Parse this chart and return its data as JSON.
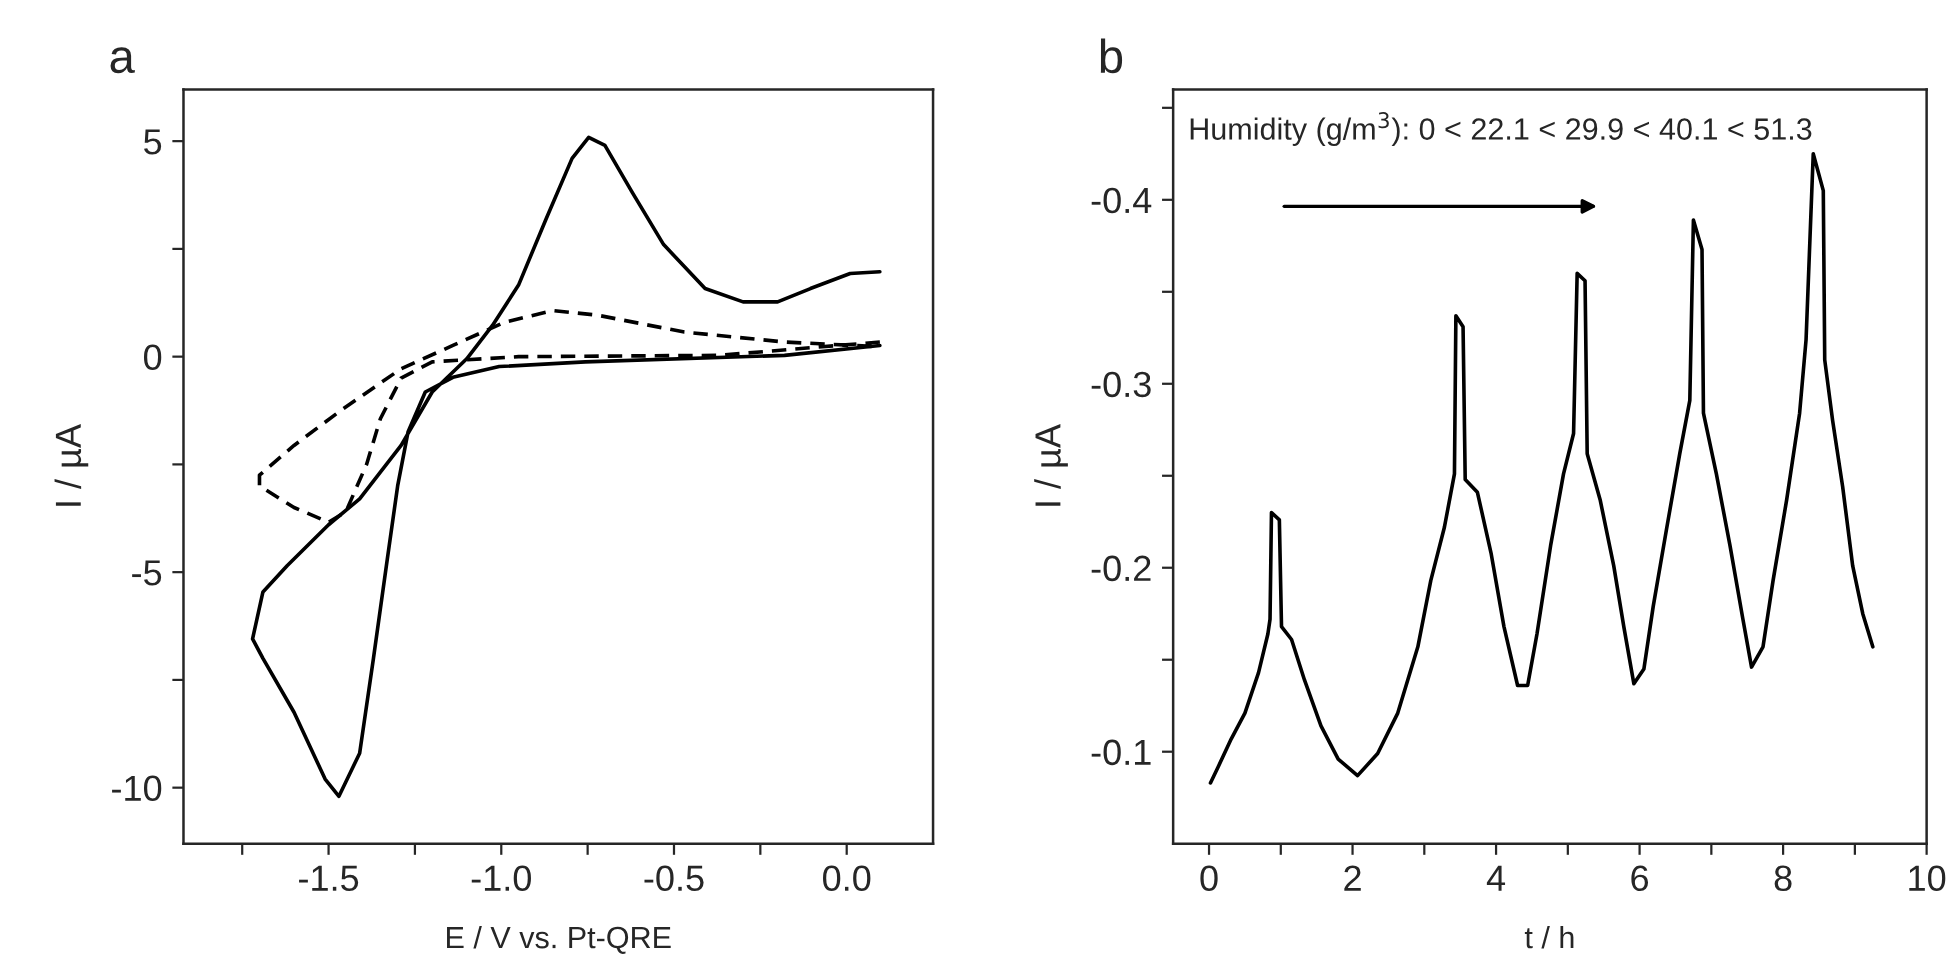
{
  "chart_data": [
    {
      "type": "line",
      "title": "a",
      "xlabel": "E / V vs. Pt-QRE",
      "ylabel": "I / µA",
      "xlim": [
        -1.92,
        0.25
      ],
      "ylim": [
        -11.3,
        6.2
      ],
      "xticks": [
        {
          "value": -1.75,
          "label": null
        },
        -1.5,
        {
          "value": -1.25,
          "label": null
        },
        {
          "value": -1.0,
          "label": "-1.0"
        },
        {
          "value": -0.75,
          "label": null
        },
        -0.5,
        {
          "value": -0.25,
          "label": null
        },
        {
          "value": 0.0,
          "label": "0.0"
        }
      ],
      "yticks": [
        -10,
        {
          "value": -7.5,
          "label": null
        },
        -5,
        {
          "value": -2.5,
          "label": null
        },
        0,
        {
          "value": 2.5,
          "label": null
        },
        5
      ],
      "grid": false,
      "legend": false,
      "series": [
        {
          "color": "#000000",
          "line_style": "solid",
          "x": [
            0.096,
            -0.18,
            -0.757,
            -1.006,
            -1.14,
            -1.22,
            -1.27,
            -1.3,
            -1.33,
            -1.37,
            -1.41,
            -1.47,
            -1.51,
            -1.6,
            -1.69,
            -1.72,
            -1.69,
            -1.62,
            -1.5,
            -1.41,
            -1.29,
            -1.2,
            -1.1,
            -1.025,
            -0.95,
            -0.87,
            -0.795,
            -0.747,
            -0.7,
            -0.62,
            -0.53,
            -0.41,
            -0.3,
            -0.2,
            -0.105,
            0.01,
            0.096
          ],
          "values": [
            0.26,
            0.03,
            -0.12,
            -0.23,
            -0.48,
            -0.82,
            -1.75,
            -3.0,
            -4.7,
            -7.0,
            -9.2,
            -10.2,
            -9.8,
            -8.25,
            -7.0,
            -6.55,
            -5.46,
            -4.85,
            -3.9,
            -3.3,
            -2.06,
            -0.82,
            -0.05,
            0.73,
            1.66,
            3.2,
            4.6,
            5.09,
            4.9,
            3.8,
            2.6,
            1.58,
            1.27,
            1.27,
            1.58,
            1.93,
            1.97
          ]
        },
        {
          "color": "#000000",
          "line_style": "dashed",
          "x": [
            0.096,
            -0.37,
            -0.95,
            -1.2,
            -1.29,
            -1.35,
            -1.39,
            -1.45,
            -1.5,
            -1.6,
            -1.7,
            -1.7,
            -1.6,
            -1.47,
            -1.29,
            -1.14,
            -0.99,
            -0.85,
            -0.72,
            -0.47,
            -0.18,
            0.096
          ],
          "values": [
            0.34,
            0.03,
            0.0,
            -0.12,
            -0.5,
            -1.44,
            -2.5,
            -3.6,
            -3.84,
            -3.5,
            -3.0,
            -2.75,
            -2.06,
            -1.28,
            -0.28,
            0.26,
            0.8,
            1.07,
            0.96,
            0.57,
            0.34,
            0.23
          ]
        }
      ]
    },
    {
      "type": "line",
      "title": "b",
      "xlabel": "t / h",
      "ylabel": "I / µA",
      "xlim": [
        -0.5,
        10
      ],
      "ylim": [
        -0.05,
        -0.46
      ],
      "xticks": [
        0,
        {
          "value": 1,
          "label": null
        },
        2,
        {
          "value": 3,
          "label": null
        },
        4,
        {
          "value": 5,
          "label": null
        },
        6,
        {
          "value": 7,
          "label": null
        },
        8,
        {
          "value": 9,
          "label": null
        },
        10
      ],
      "yticks": [
        -0.1,
        {
          "value": -0.15,
          "label": null
        },
        -0.2,
        {
          "value": -0.25,
          "label": null
        },
        -0.3,
        {
          "value": -0.35,
          "label": null
        },
        -0.4,
        {
          "value": -0.45,
          "label": null
        }
      ],
      "grid": false,
      "legend": false,
      "annotations": [
        "Humidity (g/m$^{3}$): 0 < 22.1 < 29.9 < 40.1 < 51.3"
      ],
      "series": [
        {
          "color": "#000000",
          "line_style": "solid",
          "x": [
            0.02,
            0.13,
            0.31,
            0.5,
            0.69,
            0.82,
            0.85,
            0.87,
            0.98,
            1.01,
            1.15,
            1.33,
            1.56,
            1.8,
            2.07,
            2.35,
            2.63,
            2.91,
            3.09,
            3.28,
            3.42,
            3.44,
            3.54,
            3.57,
            3.74,
            3.93,
            4.11,
            4.3,
            4.44,
            4.57,
            4.76,
            4.94,
            5.08,
            5.13,
            5.24,
            5.27,
            5.45,
            5.64,
            5.78,
            5.92,
            6.06,
            6.19,
            6.38,
            6.56,
            6.7,
            6.75,
            6.87,
            6.89,
            7.07,
            7.26,
            7.44,
            7.56,
            7.72,
            7.86,
            8.05,
            8.23,
            8.32,
            8.42,
            8.56,
            8.58,
            8.69,
            8.83,
            8.97,
            9.11,
            9.25
          ],
          "values": [
            -0.083,
            -0.092,
            -0.107,
            -0.121,
            -0.143,
            -0.164,
            -0.172,
            -0.23,
            -0.226,
            -0.168,
            -0.161,
            -0.139,
            -0.114,
            -0.096,
            -0.087,
            -0.099,
            -0.121,
            -0.157,
            -0.193,
            -0.222,
            -0.251,
            -0.337,
            -0.331,
            -0.248,
            -0.241,
            -0.208,
            -0.168,
            -0.136,
            -0.136,
            -0.164,
            -0.212,
            -0.251,
            -0.273,
            -0.36,
            -0.356,
            -0.262,
            -0.237,
            -0.201,
            -0.168,
            -0.137,
            -0.145,
            -0.179,
            -0.222,
            -0.262,
            -0.291,
            -0.389,
            -0.373,
            -0.284,
            -0.251,
            -0.212,
            -0.172,
            -0.146,
            -0.157,
            -0.193,
            -0.237,
            -0.284,
            -0.324,
            -0.425,
            -0.405,
            -0.313,
            -0.28,
            -0.244,
            -0.201,
            -0.175,
            -0.157
          ]
        }
      ]
    }
  ]
}
